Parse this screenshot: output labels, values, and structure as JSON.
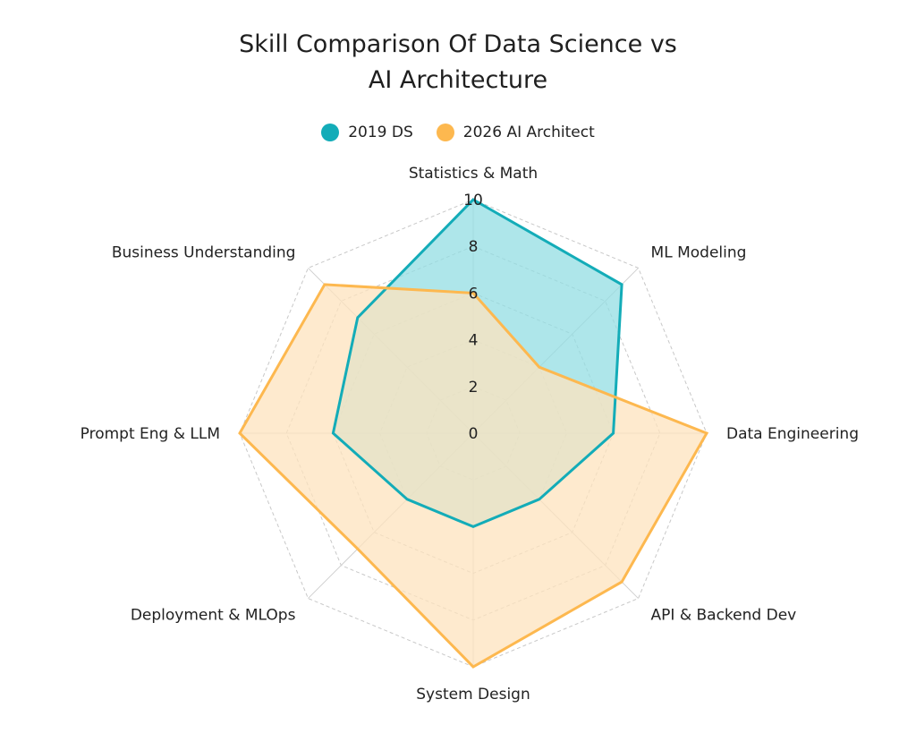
{
  "chart_data": {
    "type": "radar",
    "title": "Skill Comparison Of Data Science vs\nAI Architecture",
    "axes": [
      "Statistics & Math",
      "ML Modeling",
      "Data Engineering",
      "API & Backend Dev",
      "System Design",
      "Deployment & MLOps",
      "Prompt Eng & LLM",
      "Business Understanding"
    ],
    "rlim": [
      0,
      10
    ],
    "ticks": [
      0,
      2,
      4,
      6,
      8,
      10
    ],
    "grid": true,
    "legend_position": "top-center",
    "series": [
      {
        "name": "2019 DS",
        "values": [
          10,
          9,
          6,
          4,
          4,
          4,
          6,
          7
        ],
        "color": "#13acb8",
        "fill": "#93dde3"
      },
      {
        "name": "2026 AI Architect",
        "values": [
          6,
          4,
          10,
          9,
          10,
          7,
          10,
          9
        ],
        "color": "#fdb84f",
        "fill": "#fde3bd"
      }
    ]
  }
}
